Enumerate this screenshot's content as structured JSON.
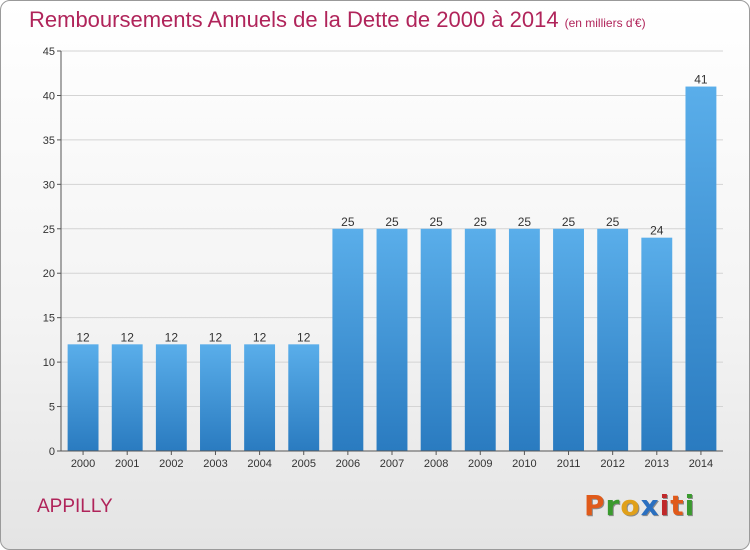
{
  "page": {
    "title": "Remboursements Annuels de la Dette de 2000 à 2014",
    "title_unit": "(en milliers d'€)",
    "commune": "APPILLY",
    "brand": "Proxiti",
    "colors": {
      "title": "#b0245a",
      "bar_top": "#5aaeea",
      "bar_bottom": "#2a7bc0",
      "brand_letters": [
        "#e05a1a",
        "#3a9a2e",
        "#e0a01a",
        "#2a6fc0",
        "#c0282a",
        "#e05a1a",
        "#3a9a2e"
      ]
    }
  },
  "chart_data": {
    "type": "bar",
    "categories": [
      "2000",
      "2001",
      "2002",
      "2003",
      "2004",
      "2005",
      "2006",
      "2007",
      "2008",
      "2009",
      "2010",
      "2011",
      "2012",
      "2013",
      "2014"
    ],
    "values": [
      12,
      12,
      12,
      12,
      12,
      12,
      25,
      25,
      25,
      25,
      25,
      25,
      25,
      24,
      41
    ],
    "data_labels": [
      "12",
      "12",
      "12",
      "12",
      "12",
      "12",
      "25",
      "25",
      "25",
      "25",
      "25",
      "25",
      "25",
      "24",
      "41"
    ],
    "ylim": [
      0,
      45
    ],
    "yticks": [
      0,
      5,
      10,
      15,
      20,
      25,
      30,
      35,
      40,
      45
    ],
    "grid": true,
    "xlabel": "",
    "ylabel": ""
  }
}
